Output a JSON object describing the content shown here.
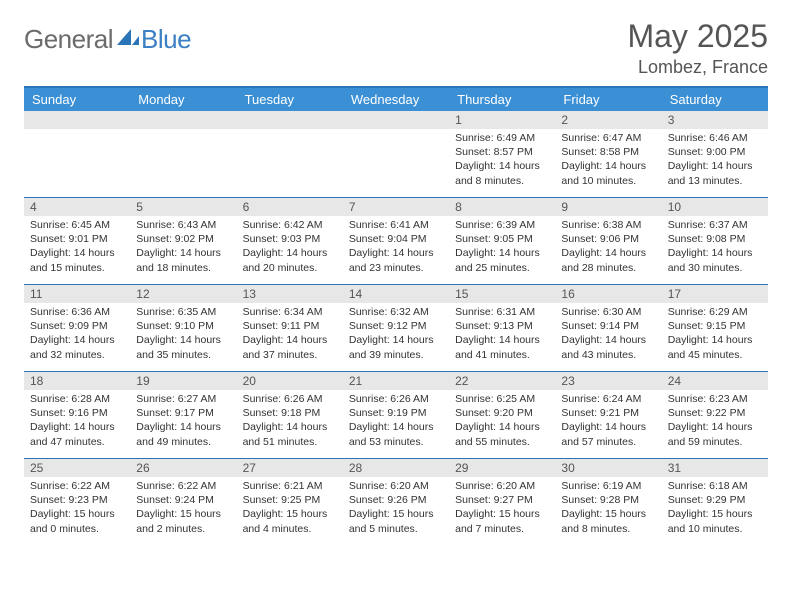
{
  "brand": {
    "part1": "General",
    "part2": "Blue"
  },
  "title": "May 2025",
  "location": "Lombez, France",
  "colors": {
    "header_bg": "#3b8fd4",
    "header_border": "#2a74b8",
    "daynum_bg": "#e7e7e7",
    "text": "#333333",
    "title_text": "#555555"
  },
  "day_headers": [
    "Sunday",
    "Monday",
    "Tuesday",
    "Wednesday",
    "Thursday",
    "Friday",
    "Saturday"
  ],
  "weeks": [
    [
      {
        "n": "",
        "lines": []
      },
      {
        "n": "",
        "lines": []
      },
      {
        "n": "",
        "lines": []
      },
      {
        "n": "",
        "lines": []
      },
      {
        "n": "1",
        "lines": [
          "Sunrise: 6:49 AM",
          "Sunset: 8:57 PM",
          "Daylight: 14 hours",
          "and 8 minutes."
        ]
      },
      {
        "n": "2",
        "lines": [
          "Sunrise: 6:47 AM",
          "Sunset: 8:58 PM",
          "Daylight: 14 hours",
          "and 10 minutes."
        ]
      },
      {
        "n": "3",
        "lines": [
          "Sunrise: 6:46 AM",
          "Sunset: 9:00 PM",
          "Daylight: 14 hours",
          "and 13 minutes."
        ]
      }
    ],
    [
      {
        "n": "4",
        "lines": [
          "Sunrise: 6:45 AM",
          "Sunset: 9:01 PM",
          "Daylight: 14 hours",
          "and 15 minutes."
        ]
      },
      {
        "n": "5",
        "lines": [
          "Sunrise: 6:43 AM",
          "Sunset: 9:02 PM",
          "Daylight: 14 hours",
          "and 18 minutes."
        ]
      },
      {
        "n": "6",
        "lines": [
          "Sunrise: 6:42 AM",
          "Sunset: 9:03 PM",
          "Daylight: 14 hours",
          "and 20 minutes."
        ]
      },
      {
        "n": "7",
        "lines": [
          "Sunrise: 6:41 AM",
          "Sunset: 9:04 PM",
          "Daylight: 14 hours",
          "and 23 minutes."
        ]
      },
      {
        "n": "8",
        "lines": [
          "Sunrise: 6:39 AM",
          "Sunset: 9:05 PM",
          "Daylight: 14 hours",
          "and 25 minutes."
        ]
      },
      {
        "n": "9",
        "lines": [
          "Sunrise: 6:38 AM",
          "Sunset: 9:06 PM",
          "Daylight: 14 hours",
          "and 28 minutes."
        ]
      },
      {
        "n": "10",
        "lines": [
          "Sunrise: 6:37 AM",
          "Sunset: 9:08 PM",
          "Daylight: 14 hours",
          "and 30 minutes."
        ]
      }
    ],
    [
      {
        "n": "11",
        "lines": [
          "Sunrise: 6:36 AM",
          "Sunset: 9:09 PM",
          "Daylight: 14 hours",
          "and 32 minutes."
        ]
      },
      {
        "n": "12",
        "lines": [
          "Sunrise: 6:35 AM",
          "Sunset: 9:10 PM",
          "Daylight: 14 hours",
          "and 35 minutes."
        ]
      },
      {
        "n": "13",
        "lines": [
          "Sunrise: 6:34 AM",
          "Sunset: 9:11 PM",
          "Daylight: 14 hours",
          "and 37 minutes."
        ]
      },
      {
        "n": "14",
        "lines": [
          "Sunrise: 6:32 AM",
          "Sunset: 9:12 PM",
          "Daylight: 14 hours",
          "and 39 minutes."
        ]
      },
      {
        "n": "15",
        "lines": [
          "Sunrise: 6:31 AM",
          "Sunset: 9:13 PM",
          "Daylight: 14 hours",
          "and 41 minutes."
        ]
      },
      {
        "n": "16",
        "lines": [
          "Sunrise: 6:30 AM",
          "Sunset: 9:14 PM",
          "Daylight: 14 hours",
          "and 43 minutes."
        ]
      },
      {
        "n": "17",
        "lines": [
          "Sunrise: 6:29 AM",
          "Sunset: 9:15 PM",
          "Daylight: 14 hours",
          "and 45 minutes."
        ]
      }
    ],
    [
      {
        "n": "18",
        "lines": [
          "Sunrise: 6:28 AM",
          "Sunset: 9:16 PM",
          "Daylight: 14 hours",
          "and 47 minutes."
        ]
      },
      {
        "n": "19",
        "lines": [
          "Sunrise: 6:27 AM",
          "Sunset: 9:17 PM",
          "Daylight: 14 hours",
          "and 49 minutes."
        ]
      },
      {
        "n": "20",
        "lines": [
          "Sunrise: 6:26 AM",
          "Sunset: 9:18 PM",
          "Daylight: 14 hours",
          "and 51 minutes."
        ]
      },
      {
        "n": "21",
        "lines": [
          "Sunrise: 6:26 AM",
          "Sunset: 9:19 PM",
          "Daylight: 14 hours",
          "and 53 minutes."
        ]
      },
      {
        "n": "22",
        "lines": [
          "Sunrise: 6:25 AM",
          "Sunset: 9:20 PM",
          "Daylight: 14 hours",
          "and 55 minutes."
        ]
      },
      {
        "n": "23",
        "lines": [
          "Sunrise: 6:24 AM",
          "Sunset: 9:21 PM",
          "Daylight: 14 hours",
          "and 57 minutes."
        ]
      },
      {
        "n": "24",
        "lines": [
          "Sunrise: 6:23 AM",
          "Sunset: 9:22 PM",
          "Daylight: 14 hours",
          "and 59 minutes."
        ]
      }
    ],
    [
      {
        "n": "25",
        "lines": [
          "Sunrise: 6:22 AM",
          "Sunset: 9:23 PM",
          "Daylight: 15 hours",
          "and 0 minutes."
        ]
      },
      {
        "n": "26",
        "lines": [
          "Sunrise: 6:22 AM",
          "Sunset: 9:24 PM",
          "Daylight: 15 hours",
          "and 2 minutes."
        ]
      },
      {
        "n": "27",
        "lines": [
          "Sunrise: 6:21 AM",
          "Sunset: 9:25 PM",
          "Daylight: 15 hours",
          "and 4 minutes."
        ]
      },
      {
        "n": "28",
        "lines": [
          "Sunrise: 6:20 AM",
          "Sunset: 9:26 PM",
          "Daylight: 15 hours",
          "and 5 minutes."
        ]
      },
      {
        "n": "29",
        "lines": [
          "Sunrise: 6:20 AM",
          "Sunset: 9:27 PM",
          "Daylight: 15 hours",
          "and 7 minutes."
        ]
      },
      {
        "n": "30",
        "lines": [
          "Sunrise: 6:19 AM",
          "Sunset: 9:28 PM",
          "Daylight: 15 hours",
          "and 8 minutes."
        ]
      },
      {
        "n": "31",
        "lines": [
          "Sunrise: 6:18 AM",
          "Sunset: 9:29 PM",
          "Daylight: 15 hours",
          "and 10 minutes."
        ]
      }
    ]
  ]
}
